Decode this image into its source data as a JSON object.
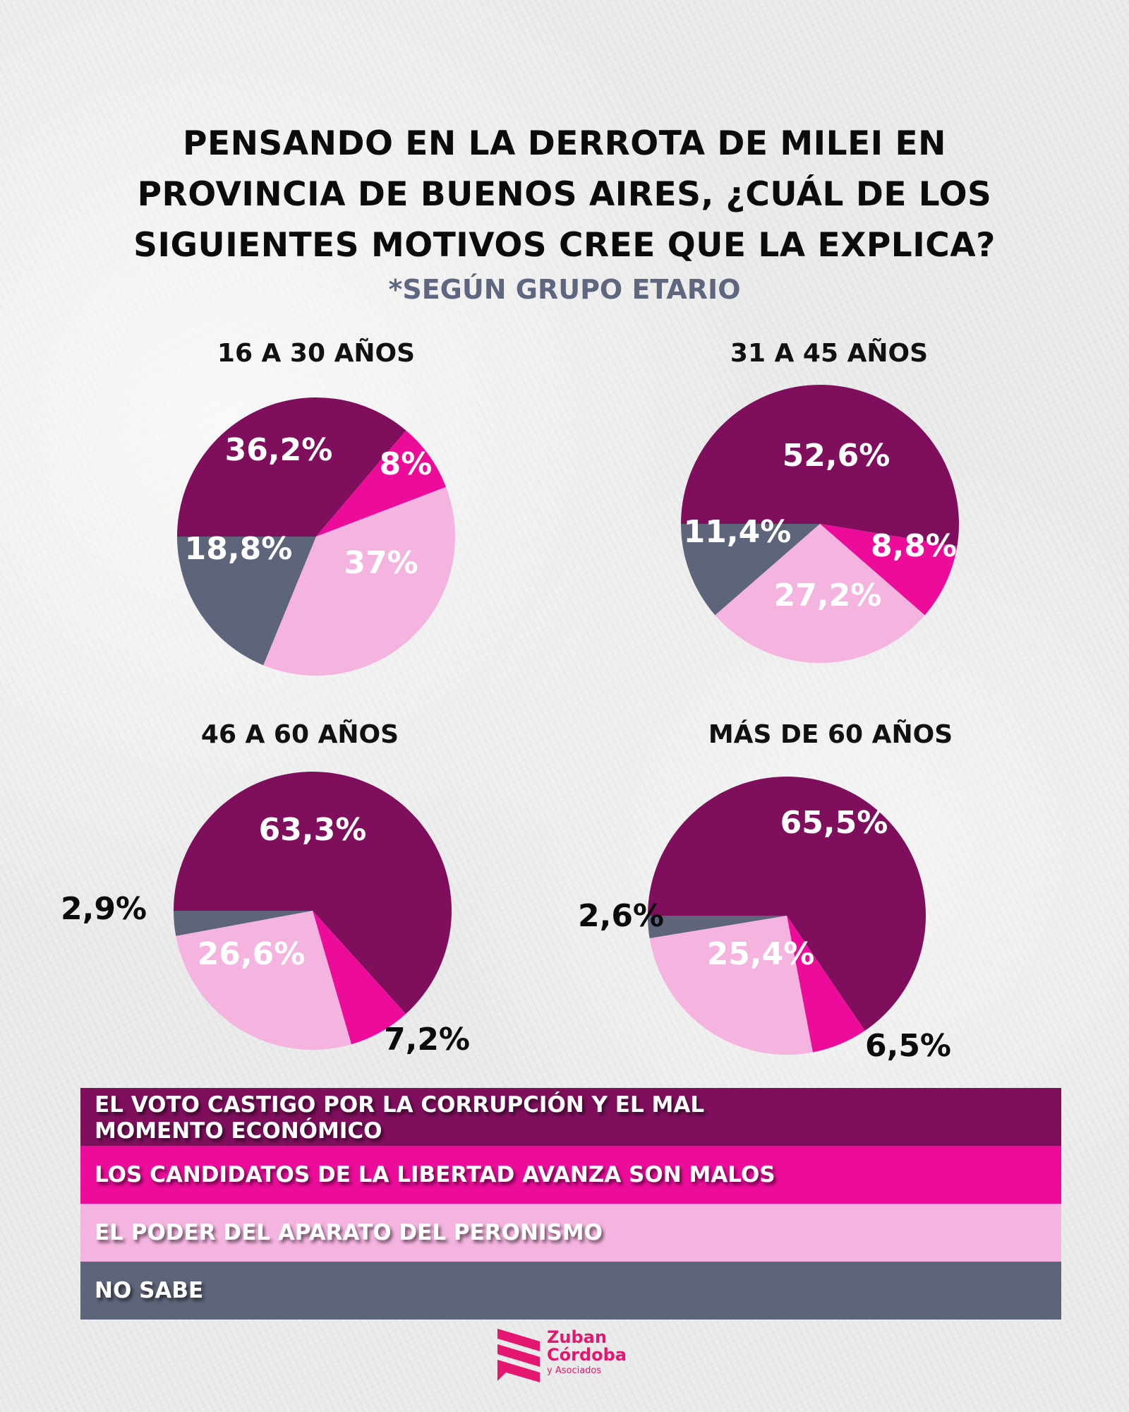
{
  "title_lines": [
    "PENSANDO EN LA DERROTA DE MILEI EN",
    "PROVINCIA DE BUENOS AIRES, ¿CUÁL DE LOS",
    "SIGUIENTES MOTIVOS CREE QUE LA EXPLICA?"
  ],
  "subtitle": "*SEGÚN GRUPO ETARIO",
  "colors": {
    "voto_castigo": "#7f0f5d",
    "candidatos_malos": "#ed0c9a",
    "aparato_peronismo": "#f5b4e0",
    "no_sabe": "#5e6479",
    "label_inside": "#ffffff",
    "label_outside": "#0b0b0b",
    "brand": "#e5166f"
  },
  "legend": [
    {
      "line1": "EL VOTO CASTIGO POR LA CORRUPCIÓN Y EL MAL",
      "line2": "MOMENTO ECONÓMICO"
    },
    {
      "line1": "LOS CANDIDATOS DE LA LIBERTAD AVANZA SON MALOS"
    },
    {
      "line1": "EL PODER DEL APARATO DEL PERONISMO"
    },
    {
      "line1": "NO SABE"
    }
  ],
  "logo": {
    "line1": "Zuban",
    "line2": "Córdoba",
    "line3": "y Asociados"
  },
  "chart_data": [
    {
      "type": "pie",
      "title": "16 A 30 AÑOS",
      "categories": [
        "El voto castigo por la corrupción y el mal momento económico",
        "Los candidatos de La Libertad Avanza son malos",
        "El poder del aparato del peronismo",
        "No sabe"
      ],
      "values": [
        36.2,
        8,
        37,
        18.8
      ],
      "labels": [
        "36,2%",
        "8%",
        "37%",
        "18,8%"
      ],
      "label_outside": [
        false,
        false,
        false,
        false
      ]
    },
    {
      "type": "pie",
      "title": "31 A 45 AÑOS",
      "categories": [
        "El voto castigo por la corrupción y el mal momento económico",
        "Los candidatos de La Libertad Avanza son malos",
        "El poder del aparato del peronismo",
        "No sabe"
      ],
      "values": [
        52.6,
        8.8,
        27.2,
        11.4
      ],
      "labels": [
        "52,6%",
        "8,8%",
        "27,2%",
        "11,4%"
      ],
      "label_outside": [
        false,
        false,
        false,
        false
      ]
    },
    {
      "type": "pie",
      "title": "46 A 60 AÑOS",
      "categories": [
        "El voto castigo por la corrupción y el mal momento económico",
        "Los candidatos de La Libertad Avanza son malos",
        "El poder del aparato del peronismo",
        "No sabe"
      ],
      "values": [
        63.3,
        7.2,
        26.6,
        2.9
      ],
      "labels": [
        "63,3%",
        "7,2%",
        "26,6%",
        "2,9%"
      ],
      "label_outside": [
        false,
        true,
        false,
        true
      ]
    },
    {
      "type": "pie",
      "title": "MÁS DE 60 AÑOS",
      "categories": [
        "El voto castigo por la corrupción y el mal momento económico",
        "Los candidatos de La Libertad Avanza son malos",
        "El poder del aparato del peronismo",
        "No sabe"
      ],
      "values": [
        65.5,
        6.5,
        25.4,
        2.6
      ],
      "labels": [
        "65,5%",
        "6,5%",
        "25,4%",
        "2,6%"
      ],
      "label_outside": [
        false,
        true,
        false,
        true
      ]
    }
  ]
}
